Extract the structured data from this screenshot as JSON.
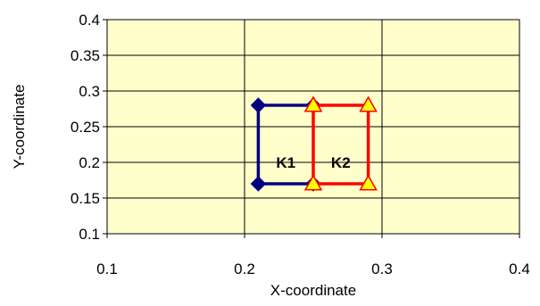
{
  "chart_data": {
    "type": "line",
    "xlabel": "X-coordinate",
    "ylabel": "Y-coordinate",
    "xlim": [
      0.1,
      0.4
    ],
    "ylim": [
      0.1,
      0.4
    ],
    "x_ticks": [
      "0.1",
      "0.2",
      "0.3",
      "0.4"
    ],
    "y_ticks": [
      "0.1",
      "0.15",
      "0.2",
      "0.25",
      "0.3",
      "0.35",
      "0.4"
    ],
    "grid": true,
    "plot_background": "#FFFFCC",
    "series": [
      {
        "color": "#000080",
        "marker": "diamond",
        "marker_color": "#000080",
        "points": [
          [
            0.25,
            0.28
          ],
          [
            0.21,
            0.28
          ],
          [
            0.21,
            0.17
          ],
          [
            0.25,
            0.17
          ]
        ]
      },
      {
        "color": "#FF0000",
        "marker": "triangle",
        "marker_color": "#FFFF00",
        "points": [
          [
            0.25,
            0.28
          ],
          [
            0.29,
            0.28
          ],
          [
            0.29,
            0.17
          ],
          [
            0.25,
            0.17
          ],
          [
            0.25,
            0.28
          ]
        ]
      }
    ],
    "annotations": [
      {
        "text": "K1",
        "x": 0.23,
        "y": 0.2
      },
      {
        "text": "K2",
        "x": 0.27,
        "y": 0.2
      }
    ]
  }
}
